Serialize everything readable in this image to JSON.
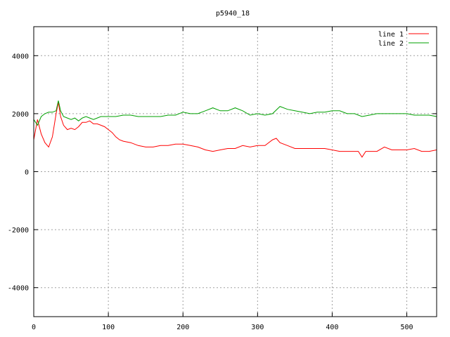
{
  "chart_data": {
    "type": "line",
    "title": "p5940_18",
    "xlabel": "",
    "ylabel": "",
    "xlim": [
      0,
      540
    ],
    "ylim": [
      -5000,
      5000
    ],
    "xticks": [
      0,
      100,
      200,
      300,
      400,
      500
    ],
    "yticks": [
      -4000,
      -2000,
      0,
      2000,
      4000
    ],
    "grid": true,
    "legend_position": "top-right",
    "series": [
      {
        "name": "line 1",
        "color": "#ff0000",
        "x": [
          0,
          5,
          10,
          15,
          20,
          25,
          30,
          33,
          36,
          40,
          45,
          50,
          55,
          60,
          65,
          70,
          75,
          80,
          85,
          90,
          95,
          100,
          105,
          110,
          115,
          120,
          130,
          140,
          150,
          160,
          170,
          180,
          190,
          200,
          210,
          220,
          230,
          240,
          250,
          260,
          270,
          280,
          290,
          300,
          310,
          320,
          325,
          330,
          340,
          350,
          360,
          370,
          380,
          390,
          400,
          410,
          420,
          430,
          435,
          440,
          445,
          450,
          460,
          470,
          480,
          490,
          500,
          510,
          520,
          530,
          540
        ],
        "y": [
          1100,
          1800,
          1300,
          1000,
          850,
          1200,
          2000,
          2400,
          1900,
          1600,
          1450,
          1500,
          1450,
          1550,
          1700,
          1700,
          1750,
          1650,
          1650,
          1600,
          1550,
          1450,
          1350,
          1200,
          1100,
          1050,
          1000,
          900,
          850,
          850,
          900,
          900,
          950,
          950,
          900,
          850,
          750,
          700,
          750,
          800,
          800,
          900,
          850,
          900,
          900,
          1100,
          1150,
          1000,
          900,
          800,
          800,
          800,
          800,
          800,
          750,
          700,
          700,
          700,
          700,
          500,
          700,
          700,
          700,
          850,
          750,
          750,
          750,
          800,
          700,
          700,
          750
        ]
      },
      {
        "name": "line 2",
        "color": "#00a000",
        "x": [
          0,
          5,
          10,
          15,
          20,
          25,
          30,
          33,
          36,
          40,
          45,
          50,
          55,
          60,
          65,
          70,
          75,
          80,
          85,
          90,
          95,
          100,
          110,
          120,
          130,
          140,
          150,
          160,
          170,
          180,
          190,
          200,
          210,
          220,
          230,
          240,
          250,
          260,
          270,
          280,
          290,
          300,
          310,
          320,
          330,
          340,
          350,
          360,
          370,
          380,
          390,
          400,
          410,
          420,
          430,
          440,
          450,
          460,
          470,
          480,
          490,
          500,
          510,
          520,
          530,
          540
        ],
        "y": [
          1800,
          1600,
          1900,
          2000,
          2050,
          2050,
          2100,
          2450,
          2100,
          1900,
          1850,
          1800,
          1850,
          1750,
          1850,
          1900,
          1850,
          1800,
          1850,
          1900,
          1900,
          1900,
          1900,
          1950,
          1950,
          1900,
          1900,
          1900,
          1900,
          1950,
          1950,
          2050,
          2000,
          2000,
          2100,
          2200,
          2100,
          2100,
          2200,
          2100,
          1950,
          2000,
          1950,
          2000,
          2250,
          2150,
          2100,
          2050,
          2000,
          2050,
          2050,
          2100,
          2100,
          2000,
          2000,
          1900,
          1950,
          2000,
          2000,
          2000,
          2000,
          2000,
          1950,
          1950,
          1950,
          1900
        ]
      }
    ]
  }
}
